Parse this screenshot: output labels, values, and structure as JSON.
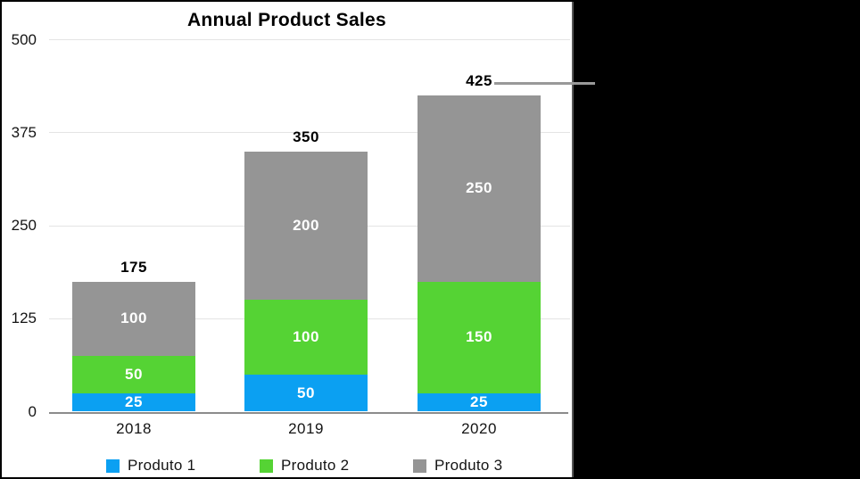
{
  "chart_data": {
    "type": "bar",
    "stacked": true,
    "title": "Annual Product Sales",
    "categories": [
      "2018",
      "2019",
      "2020"
    ],
    "series": [
      {
        "name": "Produto 1",
        "color": "#0BA0F2",
        "values": [
          25,
          50,
          25
        ]
      },
      {
        "name": "Produto 2",
        "color": "#55D334",
        "values": [
          50,
          100,
          150
        ]
      },
      {
        "name": "Produto 3",
        "color": "#959595",
        "values": [
          100,
          200,
          250
        ]
      }
    ],
    "totals": [
      175,
      350,
      425
    ],
    "y_ticks": [
      0,
      125,
      250,
      375,
      500
    ],
    "ylim": [
      0,
      500
    ],
    "grid": true,
    "legend_position": "bottom",
    "callout": {
      "label": "425",
      "attached_to_total_of": "2020"
    }
  },
  "colors": {
    "background": "#000000",
    "panel_background": "#ffffff",
    "gridline": "#e4e4e4",
    "axis_line": "#8c8c8c",
    "callout_line": "#999999",
    "segment_label_text": "#ffffff",
    "axis_label_text": "#141414",
    "title_text": "#000000",
    "panel_divider": "#565656"
  }
}
